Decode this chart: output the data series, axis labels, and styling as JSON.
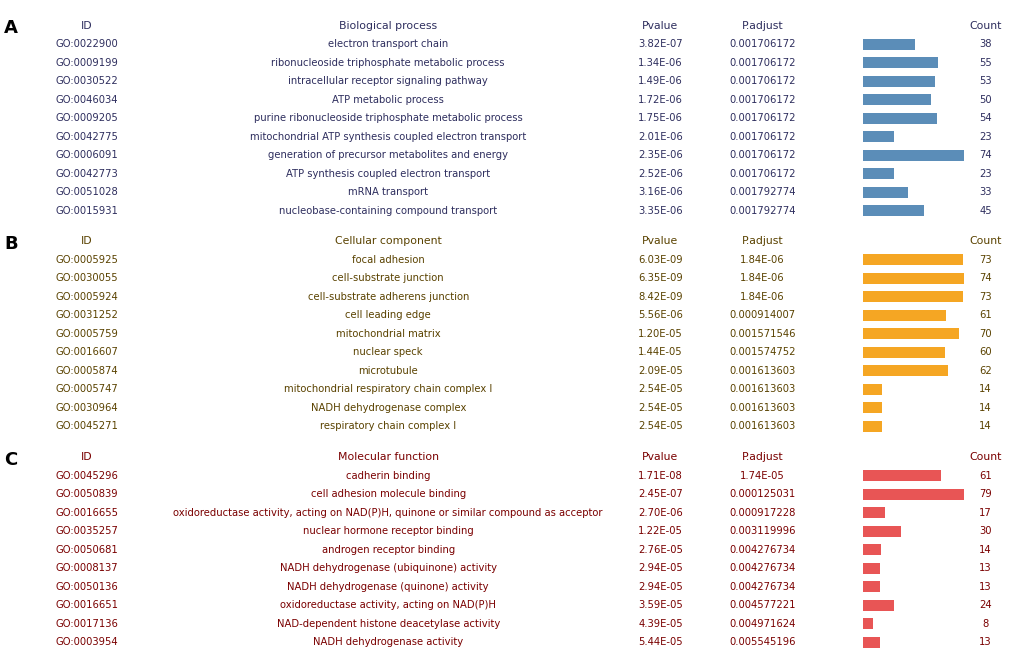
{
  "sections": [
    {
      "label": "A",
      "header": [
        "ID",
        "Biological process",
        "Pvalue",
        "P.adjust",
        "Count"
      ],
      "bg_color": "#a8c0de",
      "bar_color": "#5b8db8",
      "text_color": "#2e2e5e",
      "rows": [
        [
          "GO:0022900",
          "electron transport chain",
          "3.82E-07",
          "0.001706172",
          38
        ],
        [
          "GO:0009199",
          "ribonucleoside triphosphate metabolic process",
          "1.34E-06",
          "0.001706172",
          55
        ],
        [
          "GO:0030522",
          "intracellular receptor signaling pathway",
          "1.49E-06",
          "0.001706172",
          53
        ],
        [
          "GO:0046034",
          "ATP metabolic process",
          "1.72E-06",
          "0.001706172",
          50
        ],
        [
          "GO:0009205",
          "purine ribonucleoside triphosphate metabolic process",
          "1.75E-06",
          "0.001706172",
          54
        ],
        [
          "GO:0042775",
          "mitochondrial ATP synthesis coupled electron transport",
          "2.01E-06",
          "0.001706172",
          23
        ],
        [
          "GO:0006091",
          "generation of precursor metabolites and energy",
          "2.35E-06",
          "0.001706172",
          74
        ],
        [
          "GO:0042773",
          "ATP synthesis coupled electron transport",
          "2.52E-06",
          "0.001706172",
          23
        ],
        [
          "GO:0051028",
          "mRNA transport",
          "3.16E-06",
          "0.001792774",
          33
        ],
        [
          "GO:0015931",
          "nucleobase-containing compound transport",
          "3.35E-06",
          "0.001792774",
          45
        ]
      ],
      "max_count": 74
    },
    {
      "label": "B",
      "header": [
        "ID",
        "Cellular component",
        "Pvalue",
        "P.adjust",
        "Count"
      ],
      "bg_color": "#fde98a",
      "bar_color": "#f5a623",
      "text_color": "#5a4200",
      "rows": [
        [
          "GO:0005925",
          "focal adhesion",
          "6.03E-09",
          "1.84E-06",
          73
        ],
        [
          "GO:0030055",
          "cell-substrate junction",
          "6.35E-09",
          "1.84E-06",
          74
        ],
        [
          "GO:0005924",
          "cell-substrate adherens junction",
          "8.42E-09",
          "1.84E-06",
          73
        ],
        [
          "GO:0031252",
          "cell leading edge",
          "5.56E-06",
          "0.000914007",
          61
        ],
        [
          "GO:0005759",
          "mitochondrial matrix",
          "1.20E-05",
          "0.001571546",
          70
        ],
        [
          "GO:0016607",
          "nuclear speck",
          "1.44E-05",
          "0.001574752",
          60
        ],
        [
          "GO:0005874",
          "microtubule",
          "2.09E-05",
          "0.001613603",
          62
        ],
        [
          "GO:0005747",
          "mitochondrial respiratory chain complex I",
          "2.54E-05",
          "0.001613603",
          14
        ],
        [
          "GO:0030964",
          "NADH dehydrogenase complex",
          "2.54E-05",
          "0.001613603",
          14
        ],
        [
          "GO:0045271",
          "respiratory chain complex I",
          "2.54E-05",
          "0.001613603",
          14
        ]
      ],
      "max_count": 74
    },
    {
      "label": "C",
      "header": [
        "ID",
        "Molecular function",
        "Pvalue",
        "P.adjust",
        "Count"
      ],
      "bg_color": "#f9b8b8",
      "bar_color": "#e85555",
      "text_color": "#7a0000",
      "rows": [
        [
          "GO:0045296",
          "cadherin binding",
          "1.71E-08",
          "1.74E-05",
          61
        ],
        [
          "GO:0050839",
          "cell adhesion molecule binding",
          "2.45E-07",
          "0.000125031",
          79
        ],
        [
          "GO:0016655",
          "oxidoreductase activity, acting on NAD(P)H, quinone or similar compound as acceptor",
          "2.70E-06",
          "0.000917228",
          17
        ],
        [
          "GO:0035257",
          "nuclear hormone receptor binding",
          "1.22E-05",
          "0.003119996",
          30
        ],
        [
          "GO:0050681",
          "androgen receptor binding",
          "2.76E-05",
          "0.004276734",
          14
        ],
        [
          "GO:0008137",
          "NADH dehydrogenase (ubiquinone) activity",
          "2.94E-05",
          "0.004276734",
          13
        ],
        [
          "GO:0050136",
          "NADH dehydrogenase (quinone) activity",
          "2.94E-05",
          "0.004276734",
          13
        ],
        [
          "GO:0016651",
          "oxidoreductase activity, acting on NAD(P)H",
          "3.59E-05",
          "0.004577221",
          24
        ],
        [
          "GO:0017136",
          "NAD-dependent histone deacetylase activity",
          "4.39E-05",
          "0.004971624",
          8
        ],
        [
          "GO:0003954",
          "NADH dehydrogenase activity",
          "5.44E-05",
          "0.005545196",
          13
        ]
      ],
      "max_count": 79
    }
  ],
  "fig_width": 10.2,
  "fig_height": 6.58,
  "dpi": 100
}
